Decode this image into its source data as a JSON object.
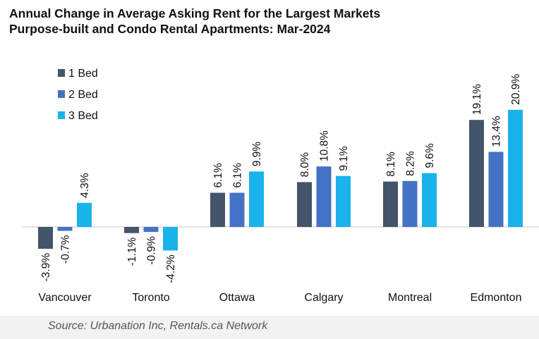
{
  "title_line1": "Annual Change in Average Asking Rent for the Largest Markets",
  "title_line2": "Purpose-built and Condo Rental Apartments: Mar-2024",
  "source": "Source: Urbanation Inc, Rentals.ca Network",
  "colors": {
    "1 Bed": "#44546a",
    "2 Bed": "#4472c4",
    "3 Bed": "#1ab2ea",
    "axis": "#d9d9d9",
    "text": "#111111"
  },
  "chart_data": {
    "type": "bar",
    "title": "Annual Change in Average Asking Rent for the Largest Markets Purpose-built and Condo Rental Apartments: Mar-2024",
    "categories": [
      "Vancouver",
      "Toronto",
      "Ottawa",
      "Calgary",
      "Montreal",
      "Edmonton"
    ],
    "series": [
      {
        "name": "1 Bed",
        "values": [
          -3.9,
          -1.1,
          6.1,
          8.0,
          8.1,
          19.1
        ],
        "labels": [
          "-3.9%",
          "-1.1%",
          "6.1%",
          "8.0%",
          "8.1%",
          "19.1%"
        ]
      },
      {
        "name": "2 Bed",
        "values": [
          -0.7,
          -0.9,
          6.1,
          10.8,
          8.2,
          13.4
        ],
        "labels": [
          "-0.7%",
          "-0.9%",
          "6.1%",
          "10.8%",
          "8.2%",
          "13.4%"
        ]
      },
      {
        "name": "3 Bed",
        "values": [
          4.3,
          -4.2,
          9.9,
          9.1,
          9.6,
          20.9
        ],
        "labels": [
          "4.3%",
          "-4.2%",
          "9.9%",
          "9.1%",
          "9.6%",
          "20.9%"
        ]
      }
    ],
    "legend": "top-left",
    "grid": false,
    "unit": "%"
  }
}
